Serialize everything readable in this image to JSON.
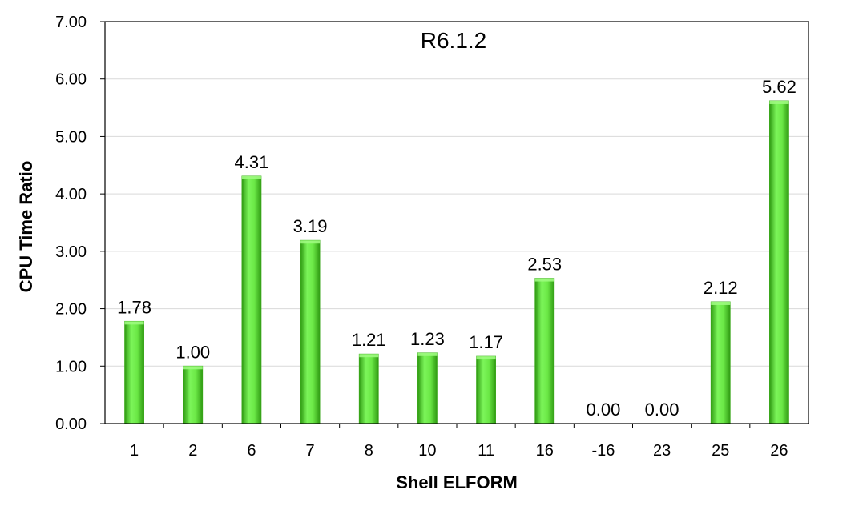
{
  "chart_data": {
    "type": "bar",
    "title": "R6.1.2",
    "xlabel": "Shell ELFORM",
    "ylabel": "CPU Time Ratio",
    "categories": [
      "1",
      "2",
      "6",
      "7",
      "8",
      "10",
      "11",
      "16",
      "-16",
      "23",
      "25",
      "26"
    ],
    "values": [
      1.78,
      1.0,
      4.31,
      3.19,
      1.21,
      1.23,
      1.17,
      2.53,
      0.0,
      0.0,
      2.12,
      5.62
    ],
    "data_labels": [
      "1.78",
      "1.00",
      "4.31",
      "3.19",
      "1.21",
      "1.23",
      "1.17",
      "2.53",
      "0.00",
      "0.00",
      "2.12",
      "5.62"
    ],
    "yticks": [
      "0.00",
      "1.00",
      "2.00",
      "3.00",
      "4.00",
      "5.00",
      "6.00",
      "7.00"
    ],
    "ylim": [
      0,
      7
    ],
    "grid": true,
    "legend": "none",
    "colors": {
      "bar_light": "#7cf55a",
      "bar_mid": "#4ed428",
      "bar_dark": "#2f9a12",
      "gridline": "#d9d9d9",
      "axis": "#000000"
    }
  }
}
